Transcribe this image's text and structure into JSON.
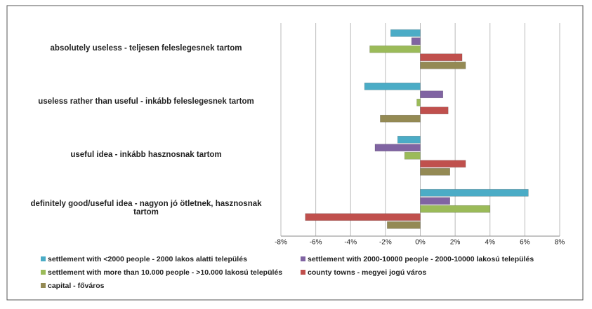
{
  "chart_data": {
    "type": "hbar",
    "categories": [
      "absolutely useless - teljesen feleslegesnek tartom",
      "useless rather than useful - inkább feleslegesnek tartom",
      "useful idea - inkább hasznosnak tartom",
      "definitely good/useful idea - nagyon jó ötletnek, hasznosnak tartom"
    ],
    "series": [
      {
        "name": "settlement with <2000 people - 2000 lakos alatti település",
        "color": "#4bacc6",
        "values": [
          -1.7,
          -3.2,
          -1.3,
          6.2
        ]
      },
      {
        "name": "settlement with 2000-10000 people - 2000-10000 lakosú település",
        "color": "#8064a2",
        "values": [
          -0.5,
          1.3,
          -2.6,
          1.7
        ]
      },
      {
        "name": "settlement with more than 10.000 people - >10.000 lakosú település",
        "color": "#9bbb59",
        "values": [
          -2.9,
          -0.2,
          -0.9,
          4.0
        ]
      },
      {
        "name": "county towns - megyei jogú város",
        "color": "#c0504d",
        "values": [
          2.4,
          1.6,
          2.6,
          -6.6
        ]
      },
      {
        "name": "capital - főváros",
        "color": "#948a54",
        "values": [
          2.6,
          -2.3,
          1.7,
          -1.9
        ]
      }
    ],
    "xlim": [
      -8,
      8
    ],
    "xticks": [
      {
        "value": -8,
        "label": "-8%"
      },
      {
        "value": -6,
        "label": "-6%"
      },
      {
        "value": -4,
        "label": "-4%"
      },
      {
        "value": -2,
        "label": "-2%"
      },
      {
        "value": 0,
        "label": "0%"
      },
      {
        "value": 2,
        "label": "2%"
      },
      {
        "value": 4,
        "label": "4%"
      },
      {
        "value": 6,
        "label": "6%"
      },
      {
        "value": 8,
        "label": "8%"
      }
    ],
    "grid": true
  }
}
